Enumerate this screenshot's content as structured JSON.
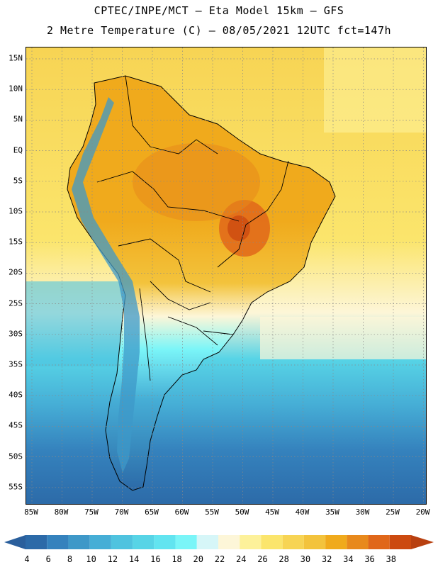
{
  "header": {
    "title_line1": "CPTEC/INPE/MCT –  Eta Model 15km – GFS",
    "title_line2": "2 Metre Temperature (C) – 08/05/2021 12UTC fct=147h"
  },
  "map": {
    "region": "South America",
    "variable": "2 Metre Temperature",
    "units": "C",
    "lat_labels": [
      "15N",
      "10N",
      "5N",
      "EQ",
      "5S",
      "10S",
      "15S",
      "20S",
      "25S",
      "30S",
      "35S",
      "40S",
      "45S",
      "50S",
      "55S"
    ],
    "lon_labels": [
      "85W",
      "80W",
      "75W",
      "70W",
      "65W",
      "60W",
      "55W",
      "50W",
      "45W",
      "40W",
      "35W",
      "30W",
      "25W",
      "20W"
    ]
  },
  "colorbar": {
    "labels": [
      "4",
      "6",
      "8",
      "10",
      "12",
      "14",
      "16",
      "18",
      "20",
      "22",
      "24",
      "26",
      "28",
      "30",
      "32",
      "34",
      "36",
      "38"
    ],
    "colors": [
      "#2c6aa8",
      "#3582bd",
      "#3e98c8",
      "#46aed6",
      "#4fc3df",
      "#57d4e6",
      "#62e4f0",
      "#7af5f8",
      "#d6f6f8",
      "#fdf6d8",
      "#fdf19a",
      "#fbe56c",
      "#f7d454",
      "#f3c33c",
      "#f0aa1c",
      "#e8891c",
      "#e0671a",
      "#cc4a10"
    ],
    "low_color": "#2a5f9c",
    "high_color": "#b84010"
  }
}
